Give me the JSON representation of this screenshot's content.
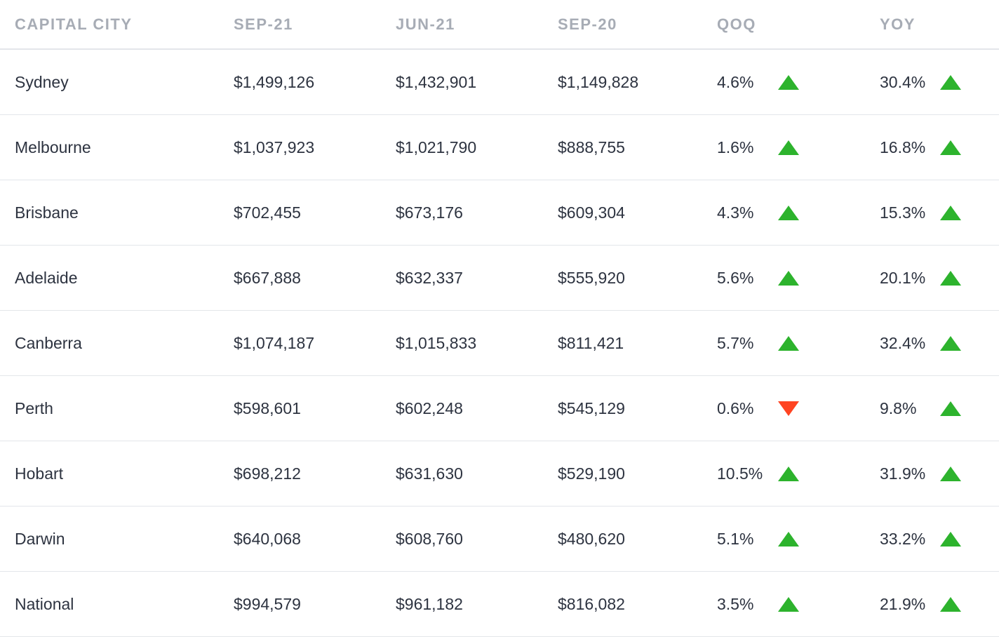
{
  "colors": {
    "up": "#2db32d",
    "down": "#ff4422",
    "header_text": "#a7acb5",
    "body_text": "#2d3340",
    "divider": "#e3e6ea"
  },
  "headers": {
    "city": "CAPITAL CITY",
    "sep21": "SEP-21",
    "jun21": "JUN-21",
    "sep20": "SEP-20",
    "qoq": "QOQ",
    "yoy": "YOY"
  },
  "rows": [
    {
      "city": "Sydney",
      "sep21": "$1,499,126",
      "jun21": "$1,432,901",
      "sep20": "$1,149,828",
      "qoq": "4.6%",
      "qoq_dir": "up",
      "yoy": "30.4%",
      "yoy_dir": "up"
    },
    {
      "city": "Melbourne",
      "sep21": "$1,037,923",
      "jun21": "$1,021,790",
      "sep20": "$888,755",
      "qoq": "1.6%",
      "qoq_dir": "up",
      "yoy": "16.8%",
      "yoy_dir": "up"
    },
    {
      "city": "Brisbane",
      "sep21": "$702,455",
      "jun21": "$673,176",
      "sep20": "$609,304",
      "qoq": "4.3%",
      "qoq_dir": "up",
      "yoy": "15.3%",
      "yoy_dir": "up"
    },
    {
      "city": "Adelaide",
      "sep21": "$667,888",
      "jun21": "$632,337",
      "sep20": "$555,920",
      "qoq": "5.6%",
      "qoq_dir": "up",
      "yoy": "20.1%",
      "yoy_dir": "up"
    },
    {
      "city": "Canberra",
      "sep21": "$1,074,187",
      "jun21": "$1,015,833",
      "sep20": "$811,421",
      "qoq": "5.7%",
      "qoq_dir": "up",
      "yoy": "32.4%",
      "yoy_dir": "up"
    },
    {
      "city": "Perth",
      "sep21": "$598,601",
      "jun21": "$602,248",
      "sep20": "$545,129",
      "qoq": "0.6%",
      "qoq_dir": "down",
      "yoy": "9.8%",
      "yoy_dir": "up"
    },
    {
      "city": "Hobart",
      "sep21": "$698,212",
      "jun21": "$631,630",
      "sep20": "$529,190",
      "qoq": "10.5%",
      "qoq_dir": "up",
      "yoy": "31.9%",
      "yoy_dir": "up"
    },
    {
      "city": "Darwin",
      "sep21": "$640,068",
      "jun21": "$608,760",
      "sep20": "$480,620",
      "qoq": "5.1%",
      "qoq_dir": "up",
      "yoy": "33.2%",
      "yoy_dir": "up"
    },
    {
      "city": "National",
      "sep21": "$994,579",
      "jun21": "$961,182",
      "sep20": "$816,082",
      "qoq": "3.5%",
      "qoq_dir": "up",
      "yoy": "21.9%",
      "yoy_dir": "up"
    }
  ]
}
